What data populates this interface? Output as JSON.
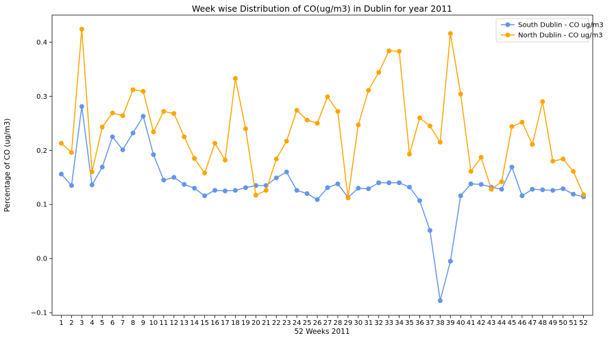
{
  "chart_data": {
    "type": "line",
    "title": "Week wise Distribution of CO(ug/m3) in Dublin for year 2011",
    "xlabel": "52 Weeks 2011",
    "ylabel": "Percentage of CO (ug/m3)",
    "x": [
      1,
      2,
      3,
      4,
      5,
      6,
      7,
      8,
      9,
      10,
      11,
      12,
      13,
      14,
      15,
      16,
      17,
      18,
      19,
      20,
      21,
      22,
      23,
      24,
      25,
      26,
      27,
      28,
      29,
      30,
      31,
      32,
      33,
      34,
      35,
      36,
      37,
      38,
      39,
      40,
      41,
      42,
      43,
      44,
      45,
      46,
      47,
      48,
      49,
      50,
      51,
      52
    ],
    "ylim": [
      -0.105,
      0.45
    ],
    "yticks": [
      -0.1,
      0.0,
      0.1,
      0.2,
      0.3,
      0.4
    ],
    "ytick_labels": [
      "−0.1",
      "0.0",
      "0.1",
      "0.2",
      "0.3",
      "0.4"
    ],
    "grid": false,
    "legend_position": "top-right",
    "series": [
      {
        "name": "South Dublin - CO ug/m3",
        "color": "#6495ED",
        "values": [
          0.156,
          0.135,
          0.281,
          0.136,
          0.169,
          0.225,
          0.201,
          0.232,
          0.263,
          0.192,
          0.145,
          0.15,
          0.137,
          0.13,
          0.116,
          0.126,
          0.125,
          0.126,
          0.131,
          0.135,
          0.135,
          0.149,
          0.16,
          0.126,
          0.12,
          0.109,
          0.131,
          0.138,
          0.113,
          0.13,
          0.129,
          0.14,
          0.14,
          0.14,
          0.132,
          0.107,
          0.052,
          -0.078,
          -0.005,
          0.116,
          0.138,
          0.137,
          0.132,
          0.128,
          0.169,
          0.116,
          0.128,
          0.127,
          0.126,
          0.129,
          0.119,
          0.114
        ]
      },
      {
        "name": "North Dublin - CO ug/m3",
        "color": "#FFA500",
        "values": [
          0.213,
          0.196,
          0.424,
          0.16,
          0.243,
          0.269,
          0.264,
          0.312,
          0.309,
          0.234,
          0.272,
          0.268,
          0.225,
          0.185,
          0.158,
          0.213,
          0.182,
          0.333,
          0.24,
          0.117,
          0.126,
          0.184,
          0.217,
          0.274,
          0.256,
          0.25,
          0.299,
          0.272,
          0.112,
          0.247,
          0.311,
          0.344,
          0.384,
          0.383,
          0.193,
          0.26,
          0.245,
          0.215,
          0.416,
          0.304,
          0.161,
          0.187,
          0.128,
          0.142,
          0.244,
          0.252,
          0.211,
          0.29,
          0.18,
          0.184,
          0.161,
          0.118
        ]
      }
    ]
  }
}
